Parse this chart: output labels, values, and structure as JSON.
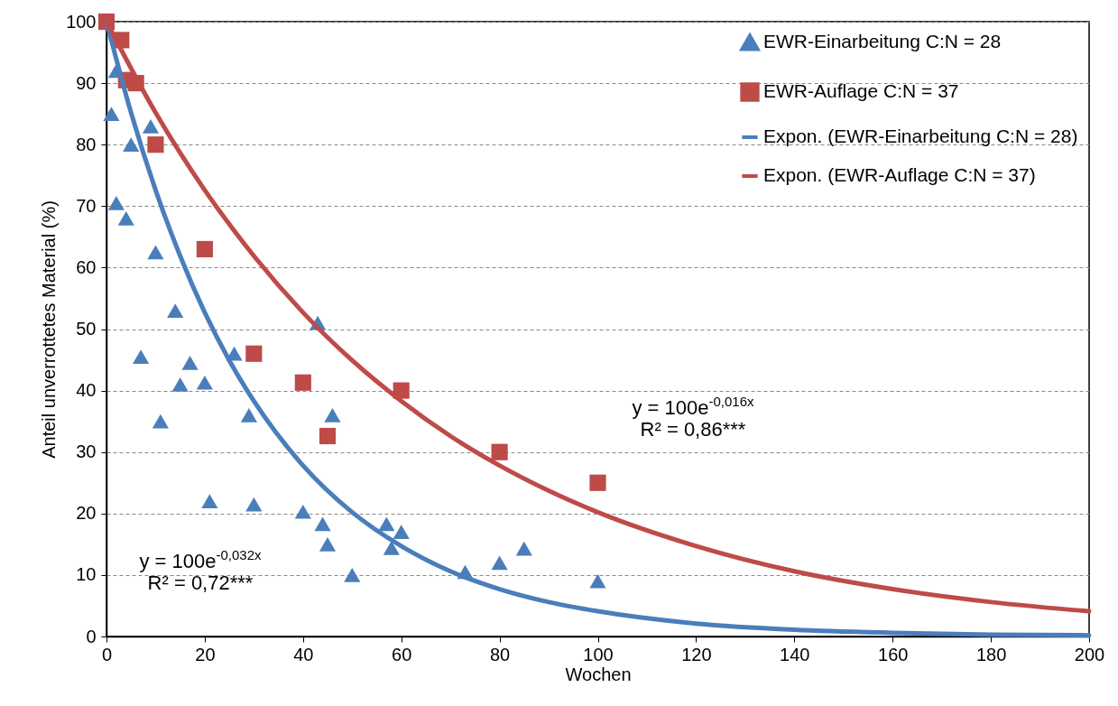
{
  "chart_data": {
    "type": "scatter",
    "xlabel": "Wochen",
    "ylabel": "Anteil unverrottetes Material (%)",
    "xlim": [
      0,
      200
    ],
    "ylim": [
      0,
      100
    ],
    "xticks": [
      0,
      20,
      40,
      60,
      80,
      100,
      120,
      140,
      160,
      180,
      200
    ],
    "yticks": [
      0,
      10,
      20,
      30,
      40,
      50,
      60,
      70,
      80,
      90,
      100
    ],
    "grid": "y",
    "legend": "top right",
    "series": [
      {
        "name": "EWR-Einarbeitung C:N = 28",
        "marker": "triangle",
        "color": "#4a7ebb",
        "x": [
          1,
          2,
          2,
          4,
          5,
          9,
          10,
          7,
          14,
          15,
          17,
          20,
          11,
          21,
          26,
          29,
          30,
          43,
          40,
          44,
          45,
          46,
          50,
          57,
          58,
          60,
          73,
          80,
          85,
          100
        ],
        "values": [
          85,
          92,
          70.5,
          68,
          80,
          83,
          62.5,
          45.5,
          53,
          41,
          44.5,
          41.3,
          35,
          22,
          46,
          36,
          21.5,
          51,
          20.3,
          18.3,
          15,
          36,
          10,
          18.3,
          14.4,
          17,
          10.5,
          12,
          14.3,
          9
        ]
      },
      {
        "name": "EWR-Auflage C:N = 37",
        "marker": "square",
        "color": "#be4b48",
        "x": [
          0,
          3,
          4,
          6,
          10,
          20,
          30,
          40,
          45,
          60,
          80,
          100
        ],
        "values": [
          100,
          97,
          90.5,
          90,
          80,
          63,
          46,
          41.3,
          32.6,
          40,
          30,
          25
        ]
      },
      {
        "name": "Expon. (EWR-Einarbeitung C:N = 28)",
        "type": "line",
        "marker": "none",
        "color": "#4a7ebb",
        "x": [
          0,
          5,
          10,
          15,
          20,
          25,
          30,
          40,
          50,
          60,
          70,
          80,
          90,
          100,
          120,
          140,
          160,
          180,
          200
        ],
        "values": [
          100,
          85.2,
          72.6,
          61.9,
          52.7,
          44.9,
          38.3,
          27.8,
          20.2,
          14.7,
          10.6,
          7.7,
          5.6,
          4.1,
          2.1,
          1.1,
          0.6,
          0.3,
          0.2
        ]
      },
      {
        "name": "Expon. (EWR-Auflage C:N = 37)",
        "type": "line",
        "marker": "none",
        "color": "#be4b48",
        "x": [
          0,
          10,
          20,
          30,
          40,
          50,
          60,
          70,
          80,
          90,
          100,
          120,
          140,
          160,
          180,
          200
        ],
        "values": [
          100,
          85.2,
          72.6,
          61.9,
          52.7,
          44.9,
          38.3,
          32.6,
          27.8,
          23.7,
          20.2,
          14.7,
          10.6,
          7.7,
          5.6,
          4.1
        ]
      }
    ],
    "annotations": [
      "y = 100e$^{-0,032x}$",
      "R² = 0,72***",
      "y = 100e$^{-0,016x}$",
      "R² = 0,86***"
    ]
  }
}
